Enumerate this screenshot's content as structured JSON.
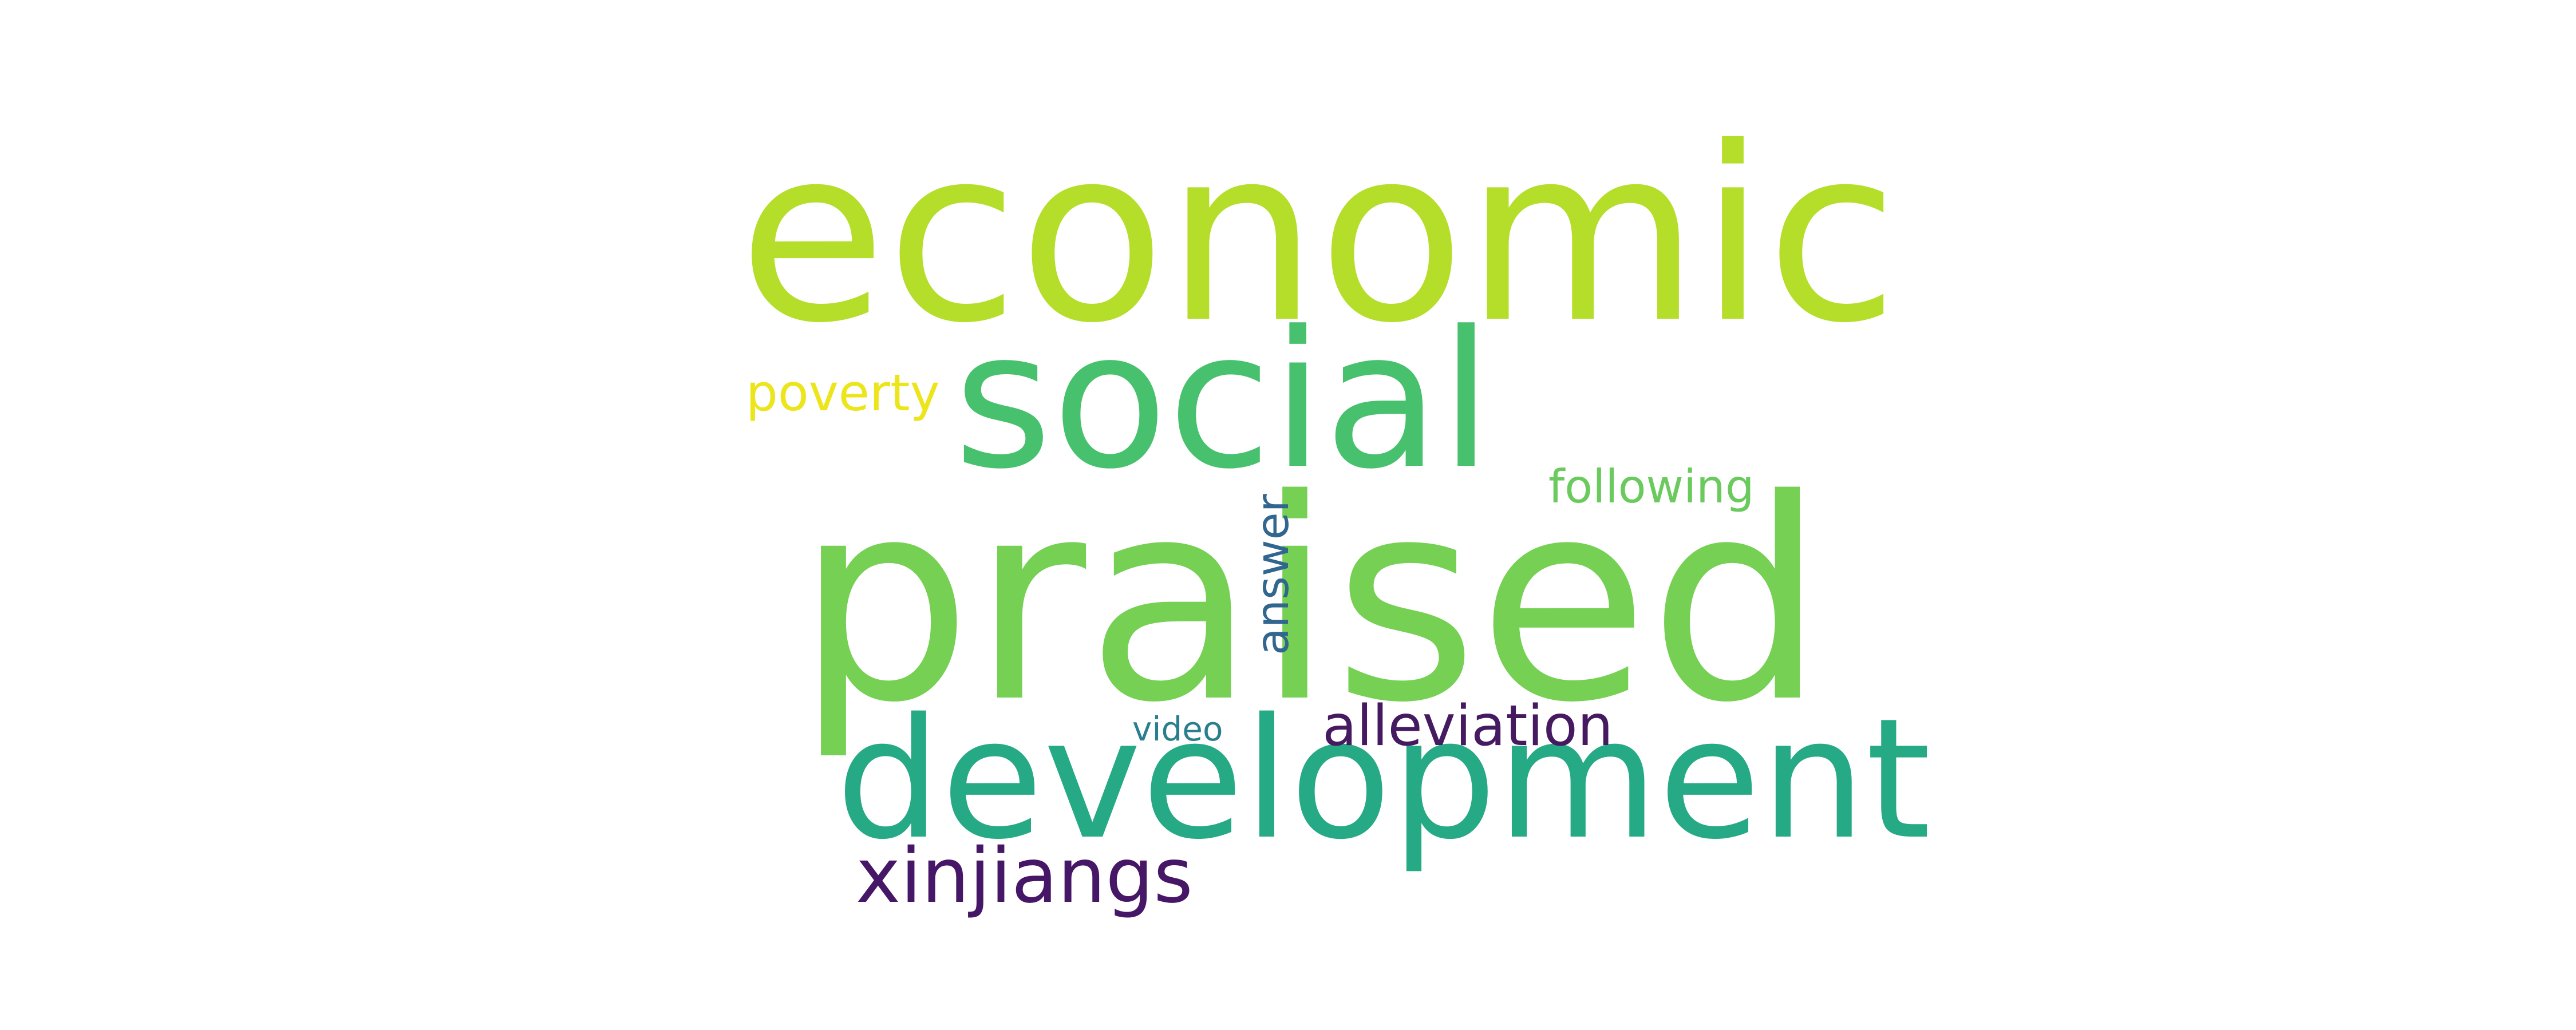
{
  "words": {
    "economic": {
      "text": "economic",
      "color": "#b5de2b"
    },
    "social": {
      "text": "social",
      "color": "#48c16e"
    },
    "praised": {
      "text": "praised",
      "color": "#76d054"
    },
    "development": {
      "text": "development",
      "color": "#26a985"
    },
    "xinjiangs": {
      "text": "xinjiangs",
      "color": "#461667"
    },
    "alleviation": {
      "text": "alleviation",
      "color": "#451a61"
    },
    "poverty": {
      "text": "poverty",
      "color": "#ede51c"
    },
    "following": {
      "text": "following",
      "color": "#6bca5e"
    },
    "answer": {
      "text": "answer",
      "color": "#31668f"
    },
    "video": {
      "text": "video",
      "color": "#2a7f8e"
    }
  }
}
